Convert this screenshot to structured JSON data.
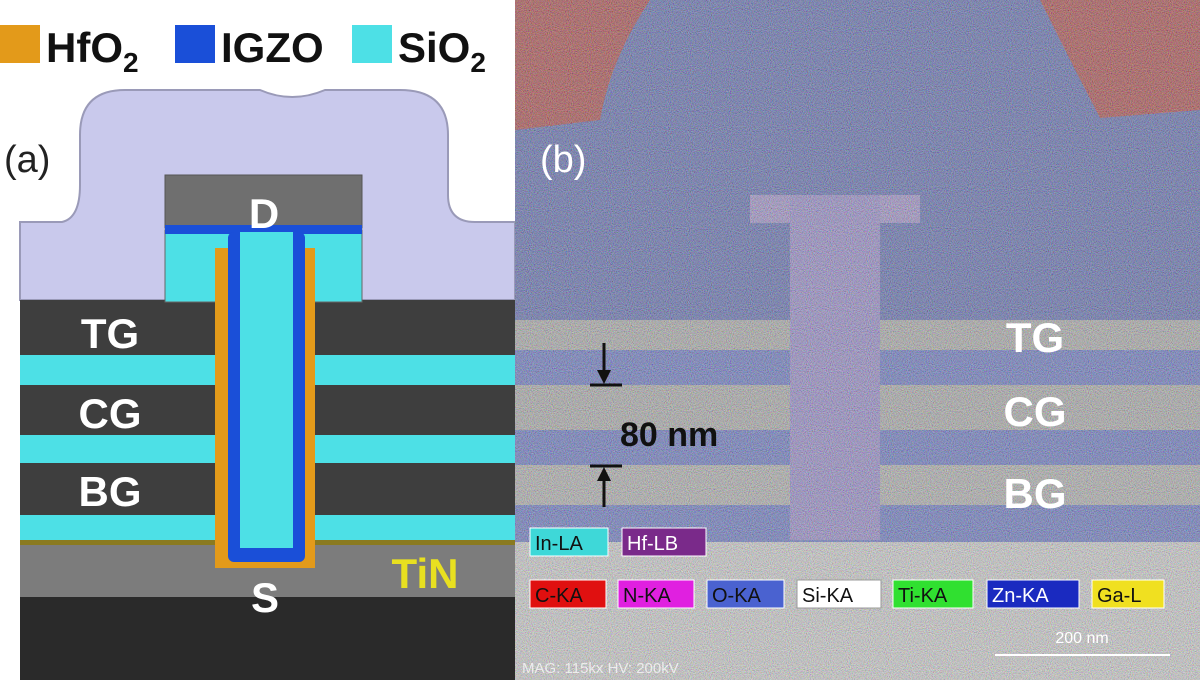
{
  "panel_a": {
    "label": "(a)",
    "legend": [
      {
        "text": "HfO",
        "sub": "2"
      },
      {
        "text": "IGZO"
      },
      {
        "text": "SiO",
        "sub": "2"
      }
    ],
    "drain": "D",
    "gates": [
      "TG",
      "CG",
      "BG"
    ],
    "source": "S",
    "tin": "TiN"
  },
  "panel_b": {
    "label": "(b)",
    "gates": [
      "TG",
      "CG",
      "BG"
    ],
    "dimension": "80 nm",
    "elements_row1": [
      "In-LA",
      "Hf-LB"
    ],
    "elements_row2": [
      "C-KA",
      "N-KA",
      "O-KA",
      "Si-KA",
      "Ti-KA",
      "Zn-KA",
      "Ga-L"
    ],
    "scale_bar": "200 nm",
    "footer": "MAG: 115kx HV: 200kV"
  }
}
